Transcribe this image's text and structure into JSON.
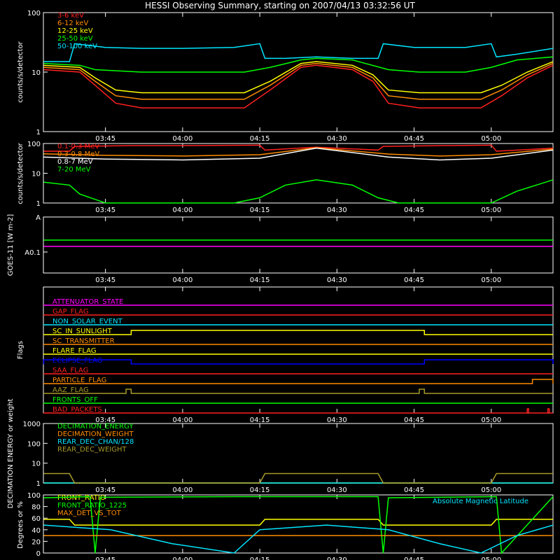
{
  "title": "HESSI Observing Summary, starting on 2007/04/13 03:32:56 UT",
  "time_ticks": [
    "03:45",
    "04:00",
    "04:15",
    "04:30",
    "04:45",
    "05:00"
  ],
  "colors": {
    "background": "#000000",
    "axes": "#ffffff",
    "red": "#ff2020",
    "orange": "#ff8c00",
    "yellow": "#ffff00",
    "green": "#00ff00",
    "cyan": "#00e5ff",
    "magenta": "#ff00ff",
    "blue": "#0000ff",
    "olive": "#a89a2a"
  },
  "chart_data": [
    {
      "type": "line",
      "panel": "lightcurve-low",
      "ylabel": "counts/s/detector",
      "yscale": "log",
      "ylim": [
        1,
        100
      ],
      "yticks": [
        "1",
        "10",
        "100"
      ],
      "xlim": [
        "03:32:56",
        "05:12:00"
      ],
      "series": [
        {
          "name": "3-6 keV",
          "color": "red",
          "x": [
            "03:33",
            "03:40",
            "03:43",
            "03:47",
            "03:52",
            "04:00",
            "04:12",
            "04:17",
            "04:23",
            "04:26",
            "04:33",
            "04:37",
            "04:40",
            "04:46",
            "04:55",
            "04:58",
            "05:02",
            "05:07",
            "05:12"
          ],
          "values": [
            11,
            10,
            6,
            3,
            2.5,
            2.5,
            2.5,
            5,
            12,
            13,
            11,
            7,
            3,
            2.5,
            2.5,
            2.5,
            4,
            8,
            13
          ]
        },
        {
          "name": "6-12 keV",
          "color": "orange",
          "x": [
            "03:33",
            "03:40",
            "03:43",
            "03:47",
            "03:52",
            "04:00",
            "04:12",
            "04:17",
            "04:23",
            "04:26",
            "04:33",
            "04:37",
            "04:40",
            "04:46",
            "04:55",
            "04:58",
            "05:02",
            "05:07",
            "05:12"
          ],
          "values": [
            12,
            11,
            7,
            4,
            3.5,
            3.5,
            3.5,
            6,
            13,
            14,
            12,
            8,
            4,
            3.5,
            3.5,
            3.5,
            5,
            9,
            14
          ]
        },
        {
          "name": "12-25 keV",
          "color": "yellow",
          "x": [
            "03:33",
            "03:40",
            "03:43",
            "03:47",
            "03:52",
            "04:00",
            "04:12",
            "04:17",
            "04:23",
            "04:26",
            "04:33",
            "04:37",
            "04:40",
            "04:46",
            "04:55",
            "04:58",
            "05:02",
            "05:07",
            "05:12"
          ],
          "values": [
            13,
            12,
            8,
            5,
            4.5,
            4.5,
            4.5,
            7,
            14,
            15,
            13,
            9,
            5,
            4.5,
            4.5,
            4.5,
            6,
            10,
            15
          ]
        },
        {
          "name": "25-50 keV",
          "color": "green",
          "x": [
            "03:33",
            "03:40",
            "03:43",
            "03:52",
            "04:00",
            "04:12",
            "04:17",
            "04:23",
            "04:26",
            "04:33",
            "04:40",
            "04:46",
            "04:55",
            "05:00",
            "05:05",
            "05:12"
          ],
          "values": [
            14,
            13,
            11,
            10,
            10,
            10,
            12,
            16,
            17,
            16,
            11,
            10,
            10,
            12,
            16,
            18
          ]
        },
        {
          "name": "50-100 keV",
          "color": "cyan",
          "x": [
            "03:33",
            "03:38",
            "03:39",
            "03:45",
            "03:52",
            "04:00",
            "04:10",
            "04:15",
            "04:16",
            "04:20",
            "04:26",
            "04:33",
            "04:38",
            "04:39",
            "04:45",
            "04:55",
            "05:00",
            "05:01",
            "05:05",
            "05:12"
          ],
          "values": [
            15,
            15,
            30,
            26,
            25,
            25,
            26,
            30,
            17,
            17,
            18,
            17,
            17,
            30,
            26,
            26,
            30,
            18,
            20,
            25
          ]
        }
      ]
    },
    {
      "type": "line",
      "panel": "lightcurve-high",
      "ylabel": "counts/s/detector",
      "yscale": "log",
      "ylim": [
        1,
        100
      ],
      "yticks": [
        "1",
        "10",
        "100"
      ],
      "series": [
        {
          "name": "0.1-0.3 MeV",
          "color": "red",
          "x": [
            "03:33",
            "03:38",
            "03:39",
            "03:50",
            "04:00",
            "04:15",
            "04:16",
            "04:26",
            "04:38",
            "04:39",
            "04:50",
            "05:00",
            "05:01",
            "05:12"
          ],
          "values": [
            55,
            55,
            80,
            85,
            85,
            88,
            60,
            75,
            60,
            80,
            85,
            88,
            55,
            70
          ]
        },
        {
          "name": "0.3-0.8 MeV",
          "color": "orange",
          "x": [
            "03:33",
            "03:45",
            "04:00",
            "04:15",
            "04:26",
            "04:40",
            "04:50",
            "05:00",
            "05:12"
          ],
          "values": [
            45,
            40,
            38,
            42,
            72,
            44,
            38,
            42,
            65
          ]
        },
        {
          "name": "0.8-7 MeV",
          "color": "white",
          "x": [
            "03:33",
            "03:45",
            "04:00",
            "04:15",
            "04:26",
            "04:40",
            "04:50",
            "05:00",
            "05:12"
          ],
          "values": [
            35,
            30,
            28,
            32,
            70,
            35,
            28,
            32,
            60
          ]
        },
        {
          "name": "7-20 MeV",
          "color": "green",
          "x": [
            "03:33",
            "03:38",
            "03:40",
            "03:45",
            "04:00",
            "04:10",
            "04:15",
            "04:20",
            "04:26",
            "04:33",
            "04:38",
            "04:42",
            "04:50",
            "05:00",
            "05:05",
            "05:12"
          ],
          "values": [
            5,
            4,
            2,
            1,
            1,
            1,
            1.5,
            4,
            6,
            4,
            1.5,
            1,
            1,
            1,
            2.5,
            6
          ]
        }
      ]
    },
    {
      "type": "line",
      "panel": "goes",
      "ylabel": "GOES-11 [W m-2]",
      "yscale": "log",
      "yticks": [
        "A",
        "A0.1"
      ],
      "series": [
        {
          "name": "GOES long",
          "color": "green",
          "x": [
            "03:33",
            "05:12"
          ],
          "values": [
            0.45,
            0.45
          ]
        },
        {
          "name": "GOES short",
          "color": "magenta",
          "x": [
            "03:33",
            "05:12"
          ],
          "values": [
            0.3,
            0.3
          ]
        }
      ]
    },
    {
      "type": "line",
      "panel": "flags",
      "ylabel": "Flags",
      "flags": [
        {
          "name": "ATTENUATOR_STATE",
          "color": "magenta",
          "high": []
        },
        {
          "name": "GAP_FLAG",
          "color": "red",
          "high": []
        },
        {
          "name": "NON_SOLAR_EVENT",
          "color": "cyan",
          "high": []
        },
        {
          "name": "SC_IN_SUNLIGHT",
          "color": "yellow",
          "high": [
            [
              "03:50",
              "04:47"
            ]
          ]
        },
        {
          "name": "SC_TRANSMITTER",
          "color": "orange",
          "high": []
        },
        {
          "name": "FLARE_FLAG",
          "color": "yellow",
          "high": []
        },
        {
          "name": "ECLIPSE_FLAG",
          "color": "blue",
          "high": [
            [
              "03:33",
              "03:50"
            ],
            [
              "04:47",
              "05:12"
            ]
          ]
        },
        {
          "name": "SAA_FLAG",
          "color": "red",
          "high": []
        },
        {
          "name": "PARTICLE_FLAG",
          "color": "orange",
          "high": [
            [
              "05:08",
              "05:12"
            ]
          ]
        },
        {
          "name": "AAZ_FLAG",
          "color": "olive",
          "high": [
            [
              "03:49",
              "03:50"
            ],
            [
              "04:46",
              "04:47"
            ]
          ]
        },
        {
          "name": "FRONTS_OFF",
          "color": "green",
          "high": []
        },
        {
          "name": "BAD_PACKETS",
          "color": "red",
          "high": [
            [
              "05:07",
              "05:07"
            ],
            [
              "05:11",
              "05:11"
            ]
          ]
        }
      ]
    },
    {
      "type": "line",
      "panel": "decimation",
      "ylabel": "DECIMATION ENERGY or weight",
      "yscale": "log",
      "ylim": [
        1,
        1000
      ],
      "yticks": [
        "1",
        "10",
        "100",
        "1000"
      ],
      "series": [
        {
          "name": "DECIMATION_ENERGY",
          "color": "green",
          "x": [
            "03:33",
            "05:12"
          ],
          "values": [
            1,
            1
          ]
        },
        {
          "name": "DECIMATION_WEIGHT",
          "color": "orange",
          "x": [
            "03:33",
            "05:12"
          ],
          "values": [
            1,
            1
          ]
        },
        {
          "name": "REAR_DEC_CHAN/128",
          "color": "cyan",
          "x": [
            "03:33",
            "05:12"
          ],
          "values": [
            1,
            1
          ]
        },
        {
          "name": "REAR_DEC_WEIGHT",
          "color": "olive",
          "x": [
            "03:33",
            "03:38",
            "03:39",
            "04:15",
            "04:16",
            "04:38",
            "04:39",
            "05:00",
            "05:01",
            "05:12"
          ],
          "values": [
            3,
            3,
            1,
            1,
            3,
            3,
            1,
            1,
            3,
            3
          ]
        }
      ]
    },
    {
      "type": "line",
      "panel": "ratios",
      "ylabel": "Degrees or %",
      "ylim": [
        0,
        100
      ],
      "yticks": [
        "0",
        "20",
        "40",
        "60",
        "80",
        "100"
      ],
      "annotation": "Absolute Magnetic Latitude",
      "series": [
        {
          "name": "FRONT_RATIO",
          "color": "yellow",
          "x": [
            "03:33",
            "03:38",
            "03:39",
            "04:15",
            "04:16",
            "04:38",
            "04:39",
            "05:00",
            "05:01",
            "05:12"
          ],
          "values": [
            58,
            58,
            48,
            48,
            58,
            58,
            48,
            48,
            58,
            58
          ]
        },
        {
          "name": "FRONT_RATIO_1225",
          "color": "green",
          "x": [
            "03:33",
            "03:42",
            "03:43",
            "03:44",
            "04:10",
            "04:38",
            "04:39",
            "04:40",
            "05:01",
            "05:02",
            "05:12"
          ],
          "values": [
            95,
            97,
            0,
            96,
            97,
            97,
            0,
            95,
            97,
            0,
            97
          ]
        },
        {
          "name": "MAX_DET_VS_TOT",
          "color": "orange",
          "x": [
            "03:33",
            "05:12"
          ],
          "values": [
            30,
            30
          ]
        },
        {
          "name": "Absolute Magnetic Latitude",
          "color": "cyan",
          "x": [
            "03:33",
            "03:46",
            "03:58",
            "04:10",
            "04:15",
            "04:28",
            "04:40",
            "04:50",
            "04:58",
            "05:05",
            "05:12"
          ],
          "values": [
            48,
            40,
            16,
            0,
            40,
            48,
            40,
            16,
            0,
            30,
            48
          ]
        }
      ]
    }
  ]
}
